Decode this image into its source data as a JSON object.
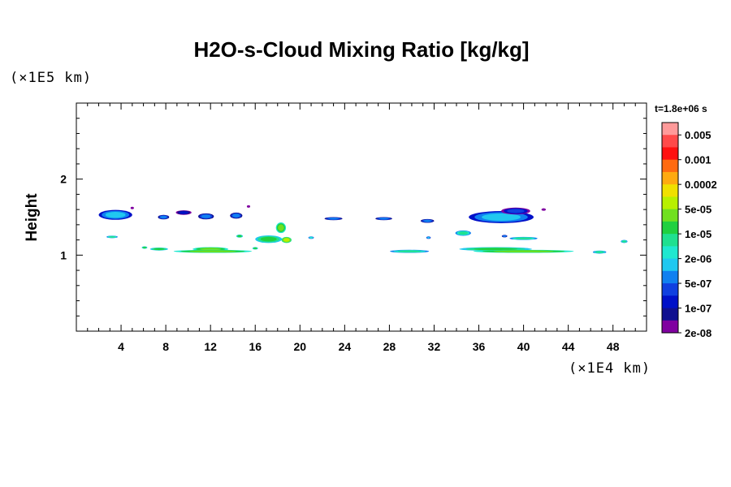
{
  "chart_data": {
    "type": "heatmap",
    "title": "H2O-s-Cloud Mixing Ratio [kg/kg]",
    "ylabel": "Height",
    "x_unit": "(×1E4 km)",
    "y_unit": "(×1E5 km)",
    "time_label": "t=1.8e+06 s",
    "xlim": [
      0,
      51
    ],
    "ylim": [
      0,
      3
    ],
    "x_ticks": [
      4,
      8,
      12,
      16,
      20,
      24,
      28,
      32,
      36,
      40,
      44,
      48
    ],
    "x_tick_labels": [
      "4",
      "8",
      "12",
      "16",
      "20",
      "24",
      "28",
      "32",
      "36",
      "40",
      "44",
      "48"
    ],
    "y_ticks": [
      1,
      2
    ],
    "y_tick_labels": [
      "1",
      "2"
    ],
    "colorbar": {
      "labels": [
        "0.005",
        "0.001",
        "0.0002",
        "5e-05",
        "1e-05",
        "2e-06",
        "5e-07",
        "1e-07",
        "2e-08"
      ],
      "colors": [
        "#ff9a9a",
        "#ff4a4a",
        "#ff1010",
        "#ff6a10",
        "#ffaa10",
        "#f0e000",
        "#b8f000",
        "#70e020",
        "#20d040",
        "#20e090",
        "#20e8d0",
        "#20c8f0",
        "#1080f0",
        "#1040e0",
        "#0010c8",
        "#101090",
        "#8000a0"
      ]
    },
    "blobs": [
      {
        "x": 3.5,
        "y": 1.53,
        "w": 3.0,
        "h": 0.13,
        "level": 11
      },
      {
        "x": 7.8,
        "y": 1.5,
        "w": 1.0,
        "h": 0.06,
        "level": 12
      },
      {
        "x": 9.6,
        "y": 1.56,
        "w": 1.4,
        "h": 0.06,
        "level": 14
      },
      {
        "x": 11.6,
        "y": 1.51,
        "w": 1.4,
        "h": 0.08,
        "level": 12
      },
      {
        "x": 14.3,
        "y": 1.52,
        "w": 1.1,
        "h": 0.08,
        "level": 12
      },
      {
        "x": 18.3,
        "y": 1.36,
        "w": 0.9,
        "h": 0.14,
        "level": 7
      },
      {
        "x": 17.2,
        "y": 1.21,
        "w": 2.4,
        "h": 0.1,
        "level": 8
      },
      {
        "x": 18.8,
        "y": 1.2,
        "w": 0.9,
        "h": 0.08,
        "level": 6
      },
      {
        "x": 23.0,
        "y": 1.48,
        "w": 1.6,
        "h": 0.04,
        "level": 12
      },
      {
        "x": 27.5,
        "y": 1.48,
        "w": 1.5,
        "h": 0.04,
        "level": 12
      },
      {
        "x": 31.4,
        "y": 1.45,
        "w": 1.2,
        "h": 0.05,
        "level": 12
      },
      {
        "x": 38.0,
        "y": 1.5,
        "w": 5.8,
        "h": 0.16,
        "level": 11
      },
      {
        "x": 39.3,
        "y": 1.58,
        "w": 2.6,
        "h": 0.09,
        "level": 13
      },
      {
        "x": 34.6,
        "y": 1.29,
        "w": 1.4,
        "h": 0.07,
        "level": 9
      },
      {
        "x": 38.3,
        "y": 1.25,
        "w": 0.5,
        "h": 0.03,
        "level": 12
      },
      {
        "x": 40.0,
        "y": 1.22,
        "w": 2.5,
        "h": 0.04,
        "level": 9
      },
      {
        "x": 12.0,
        "y": 1.08,
        "w": 3.2,
        "h": 0.05,
        "level": 7
      },
      {
        "x": 12.2,
        "y": 1.05,
        "w": 7.0,
        "h": 0.04,
        "level": 7
      },
      {
        "x": 7.4,
        "y": 1.08,
        "w": 1.6,
        "h": 0.04,
        "level": 8
      },
      {
        "x": 29.8,
        "y": 1.05,
        "w": 3.5,
        "h": 0.04,
        "level": 9
      },
      {
        "x": 37.5,
        "y": 1.08,
        "w": 6.5,
        "h": 0.05,
        "level": 8
      },
      {
        "x": 40.0,
        "y": 1.05,
        "w": 9.0,
        "h": 0.04,
        "level": 7
      },
      {
        "x": 46.8,
        "y": 1.04,
        "w": 1.2,
        "h": 0.04,
        "level": 9
      },
      {
        "x": 3.2,
        "y": 1.24,
        "w": 1.0,
        "h": 0.03,
        "level": 9
      },
      {
        "x": 14.6,
        "y": 1.25,
        "w": 0.6,
        "h": 0.04,
        "level": 8
      },
      {
        "x": 21.0,
        "y": 1.23,
        "w": 0.5,
        "h": 0.03,
        "level": 10
      },
      {
        "x": 49.0,
        "y": 1.18,
        "w": 0.6,
        "h": 0.04,
        "level": 9
      },
      {
        "x": 6.1,
        "y": 1.1,
        "w": 0.5,
        "h": 0.03,
        "level": 8
      },
      {
        "x": 16.0,
        "y": 1.09,
        "w": 0.5,
        "h": 0.03,
        "level": 8
      },
      {
        "x": 31.5,
        "y": 1.23,
        "w": 0.4,
        "h": 0.03,
        "level": 11
      },
      {
        "x": 41.8,
        "y": 1.6,
        "w": 0.4,
        "h": 0.03,
        "level": 16
      },
      {
        "x": 5.0,
        "y": 1.62,
        "w": 0.3,
        "h": 0.03,
        "level": 16
      },
      {
        "x": 15.4,
        "y": 1.64,
        "w": 0.3,
        "h": 0.03,
        "level": 16
      }
    ]
  }
}
